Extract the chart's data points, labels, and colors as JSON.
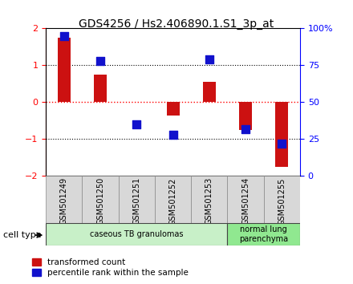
{
  "title": "GDS4256 / Hs2.406890.1.S1_3p_at",
  "samples": [
    "GSM501249",
    "GSM501250",
    "GSM501251",
    "GSM501252",
    "GSM501253",
    "GSM501254",
    "GSM501255"
  ],
  "transformed_count": [
    1.75,
    0.75,
    0.02,
    -0.35,
    0.55,
    -0.75,
    -1.75
  ],
  "percentile_rank": [
    95,
    78,
    35,
    28,
    79,
    32,
    22
  ],
  "cell_type_groups": [
    {
      "label": "caseous TB granulomas",
      "samples": [
        0,
        1,
        2,
        3,
        4
      ],
      "color": "#c8f0c8"
    },
    {
      "label": "normal lung\nparenchyma",
      "samples": [
        5,
        6
      ],
      "color": "#90e890"
    }
  ],
  "ylim_left": [
    -2,
    2
  ],
  "ylim_right": [
    0,
    100
  ],
  "yticks_left": [
    -2,
    -1,
    0,
    1,
    2
  ],
  "yticks_right": [
    0,
    25,
    50,
    75,
    100
  ],
  "yticklabels_right": [
    "0",
    "25",
    "50",
    "75",
    "100%"
  ],
  "bar_color_red": "#cc1111",
  "bar_color_blue": "#1111cc",
  "legend_red_label": "transformed count",
  "legend_blue_label": "percentile rank within the sample",
  "cell_type_label": "cell type",
  "bar_width": 0.35,
  "dot_size": 60
}
